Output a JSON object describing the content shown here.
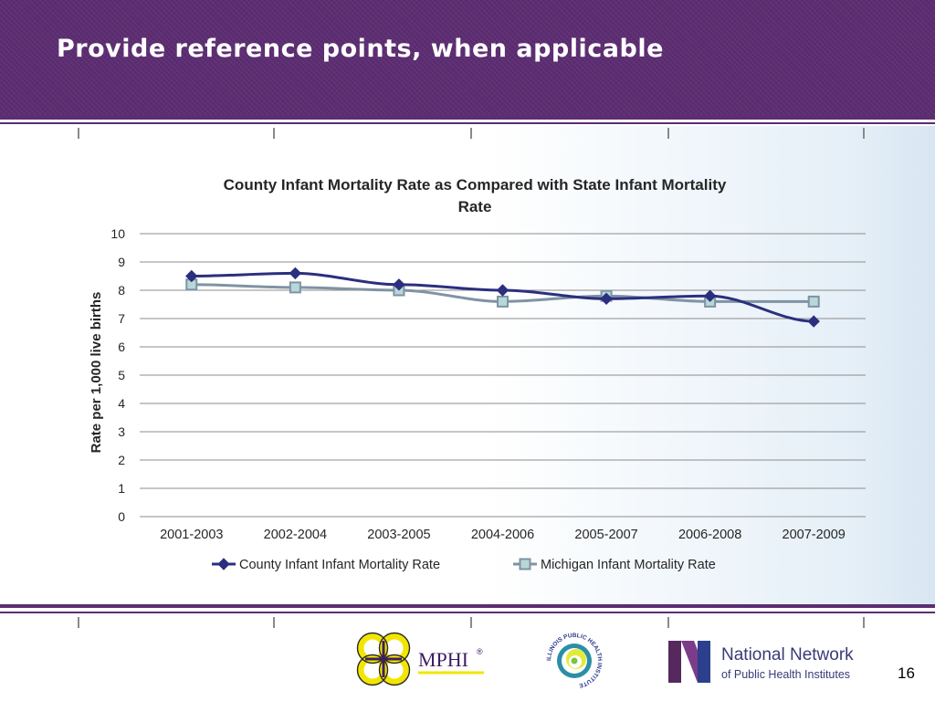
{
  "slide": {
    "title": "Provide reference points, when applicable",
    "page_number": "16"
  },
  "logos": {
    "mphi": "MPHI",
    "mphi_mark": "®",
    "illinois": "ILLINOIS PUBLIC HEALTH INSTITUTE",
    "nnphi_line1": "National Network",
    "nnphi_line2": "of Public Health Institutes"
  },
  "colors": {
    "header": "#5c2d72",
    "county_series": "#2b2f7e",
    "michigan_series": "#7f93a3"
  },
  "chart_data": {
    "type": "line",
    "title": [
      "County Infant Mortality Rate as Compared with State Infant Mortality",
      "Rate"
    ],
    "xlabel": "",
    "ylabel": "Rate per 1,000 live births",
    "ylim": [
      0,
      10
    ],
    "yticks": [
      "0",
      "1",
      "2",
      "3",
      "4",
      "5",
      "6",
      "7",
      "8",
      "9",
      "10"
    ],
    "grid": true,
    "legend_position": "bottom",
    "categories": [
      "2001-2003",
      "2002-2004",
      "2003-2005",
      "2004-2006",
      "2005-2007",
      "2006-2008",
      "2007-2009"
    ],
    "series": [
      {
        "name": "County Infant Infant Mortality Rate",
        "marker": "diamond",
        "color": "#2b2f7e",
        "values": [
          8.5,
          8.6,
          8.2,
          8.0,
          7.7,
          7.8,
          6.9
        ]
      },
      {
        "name": "Michigan Infant Mortality Rate",
        "marker": "square",
        "color": "#7f93a3",
        "values": [
          8.2,
          8.1,
          8.0,
          7.6,
          7.8,
          7.6,
          7.6
        ]
      }
    ]
  }
}
